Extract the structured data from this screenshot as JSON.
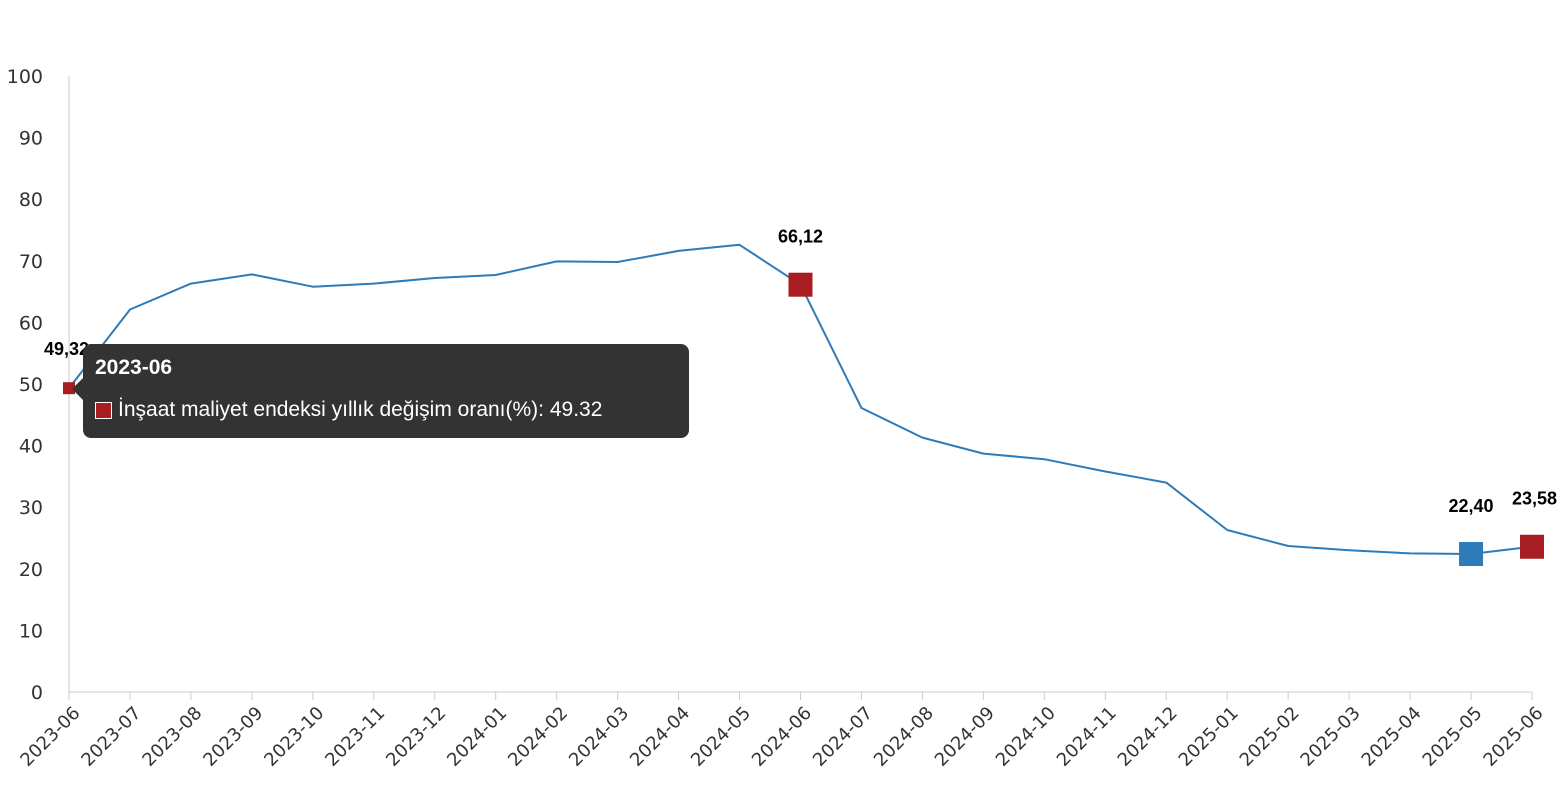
{
  "chart_data": {
    "type": "line",
    "title": "",
    "xlabel": "",
    "ylabel": "",
    "ylim": [
      0,
      100
    ],
    "yticks": [
      "0",
      "10",
      "20",
      "30",
      "40",
      "50",
      "60",
      "70",
      "80",
      "90",
      "100"
    ],
    "grid": false,
    "categories": [
      "2023-06",
      "2023-07",
      "2023-08",
      "2023-09",
      "2023-10",
      "2023-11",
      "2023-12",
      "2024-01",
      "2024-02",
      "2024-03",
      "2024-04",
      "2024-05",
      "2024-06",
      "2024-07",
      "2024-08",
      "2024-09",
      "2024-10",
      "2024-11",
      "2024-12",
      "2025-01",
      "2025-02",
      "2025-03",
      "2025-04",
      "2025-05",
      "2025-06"
    ],
    "series": [
      {
        "name": "İnşaat maliyet endeksi yıllık değişim oranı(%)",
        "color": "#2e7bba",
        "values": [
          49.32,
          62.1,
          66.3,
          67.8,
          65.8,
          66.3,
          67.2,
          67.7,
          69.9,
          69.8,
          71.6,
          72.6,
          66.12,
          46.1,
          41.3,
          38.7,
          37.8,
          35.8,
          34.0,
          26.3,
          23.7,
          23.0,
          22.5,
          22.4,
          23.58
        ]
      }
    ],
    "highlighted_points": [
      {
        "index": 0,
        "label": "49,32",
        "color": "#a71d22",
        "marker": "small-square"
      },
      {
        "index": 12,
        "label": "66,12",
        "color": "#a71d22",
        "marker": "large-square"
      },
      {
        "index": 23,
        "label": "22,40",
        "color": "#2e7bba",
        "marker": "large-square"
      },
      {
        "index": 24,
        "label": "23,58",
        "color": "#a71d22",
        "marker": "large-square"
      }
    ]
  },
  "tooltip": {
    "title": "2023-06",
    "series_label": "İnşaat maliyet endeksi yıllık değişim oranı(%)",
    "value": "49.32",
    "swatch_color": "#a71d22"
  }
}
